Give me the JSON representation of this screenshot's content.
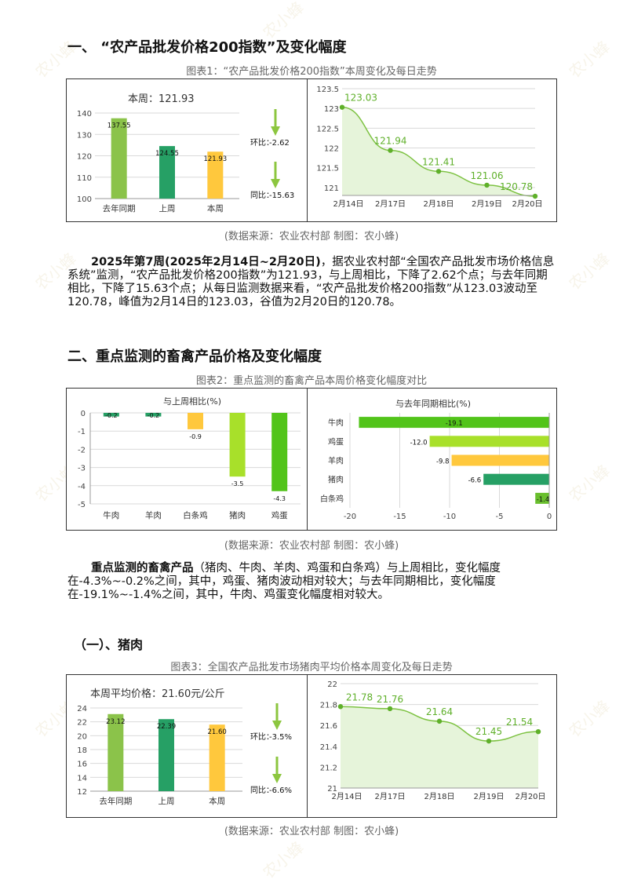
{
  "section1": {
    "heading": "一、 “农产品批发价格200指数”及变化幅度",
    "chart_caption": "图表1：“农产品批发价格200指数”本周变化及每日走势",
    "source": "(数据来源：农业农村部    制图：农小蜂)",
    "paragraph_bold": "2025年第7周(2025年2月14日~2月20日)",
    "paragraph_rest": "，据农业农村部“全国农产品批发市场价格信息系统”监测，“农产品批发价格200指数”为121.93，与上周相比，下降了2.62个点；与去年同期相比，下降了15.63个点；从每日监测数据来看，“农产品批发价格200指数”从123.03波动至120.78，峰值为2月14日的123.03，谷值为2月20日的120.78。"
  },
  "section2": {
    "heading": "二、重点监测的畜禽产品价格及变化幅度",
    "chart_caption": "图表2：重点监测的畜禽产品本周价格变化幅度对比",
    "source": "(数据来源：农业农村部    制图：农小蜂)",
    "paragraph_bold": "重点监测的畜禽产品",
    "paragraph_rest": "（猪肉、牛肉、羊肉、鸡蛋和白条鸡）与上周相比，变化幅度在-4.3%~-0.2%之间，其中，鸡蛋、猪肉波动相对较大；与去年同期相比，变化幅度在-19.1%~-1.4%之间，其中，牛肉、鸡蛋变化幅度相对较大。"
  },
  "section3": {
    "heading": "（一）、猪肉",
    "chart_caption": "图表3：全国农产品批发市场猪肉平均价格本周变化及每日走势",
    "source": "(数据来源：农业农村部    制图：农小蜂)"
  },
  "watermark": "农小蜂",
  "colors": {
    "olive_green": "#8bc34a",
    "dark_green": "#26a065",
    "yellow": "#ffc83d",
    "line_green": "#7dc242",
    "bright_green": "#52c41a",
    "lime": "#a8e02a",
    "arrow": "#8cc63f"
  },
  "chart_data": [
    {
      "type": "bar",
      "title": "本周：121.93",
      "categories": [
        "去年同期",
        "上周",
        "本周"
      ],
      "values": [
        137.55,
        124.55,
        121.93
      ],
      "value_labels": [
        "137.55",
        "124.55",
        "121.93"
      ],
      "y_ticks": [
        "100",
        "110",
        "120",
        "130",
        "140"
      ],
      "ylim": [
        100,
        140
      ],
      "annotations": [
        {
          "label": "环比：",
          "value": "-2.62"
        },
        {
          "label": "同比：",
          "value": "-15.63"
        }
      ]
    },
    {
      "type": "area",
      "categories": [
        "2月14日",
        "2月17日",
        "2月18日",
        "2月19日",
        "2月20日"
      ],
      "values": [
        123.03,
        121.94,
        121.41,
        121.06,
        120.78
      ],
      "value_labels": [
        "123.03",
        "121.94",
        "121.41",
        "121.06",
        "120.78"
      ],
      "y_ticks": [
        "121",
        "121.5",
        "122",
        "122.5",
        "123",
        "123.5"
      ],
      "ylim": [
        120.8,
        123.5
      ]
    },
    {
      "type": "bar",
      "title": "与上周相比(%)",
      "categories": [
        "牛肉",
        "羊肉",
        "白条鸡",
        "猪肉",
        "鸡蛋"
      ],
      "values": [
        -0.2,
        -0.2,
        -0.9,
        -3.5,
        -4.3
      ],
      "value_labels": [
        "-0.2",
        "-0.2",
        "-0.9",
        "-3.5",
        "-4.3"
      ],
      "y_ticks": [
        "0",
        "-1",
        "-2",
        "-3",
        "-4",
        "-5"
      ],
      "ylim": [
        -5,
        0
      ]
    },
    {
      "type": "bar",
      "orientation": "horizontal",
      "title": "与去年同期相比(%)",
      "categories": [
        "牛肉",
        "鸡蛋",
        "羊肉",
        "猪肉",
        "白条鸡"
      ],
      "values": [
        -19.1,
        -12.0,
        -9.8,
        -6.6,
        -1.4
      ],
      "value_labels": [
        "-19.1",
        "-12.0",
        "-9.8",
        "-6.6",
        "-1.4"
      ],
      "x_ticks": [
        "-20",
        "-15",
        "-10",
        "-5",
        "0"
      ],
      "xlim": [
        -20,
        0
      ]
    },
    {
      "type": "bar",
      "title": "本周平均价格：21.60元/公斤",
      "categories": [
        "去年同期",
        "上周",
        "本周"
      ],
      "values": [
        23.12,
        22.39,
        21.6
      ],
      "value_labels": [
        "23.12",
        "22.39",
        "21.60"
      ],
      "y_ticks": [
        "12",
        "14",
        "16",
        "18",
        "20",
        "22",
        "24"
      ],
      "ylim": [
        12,
        24
      ],
      "annotations": [
        {
          "label": "环比：",
          "value": "-3.5%"
        },
        {
          "label": "同比：",
          "value": "-6.6%"
        }
      ]
    },
    {
      "type": "area",
      "categories": [
        "2月14日",
        "2月17日",
        "2月18日",
        "2月19日",
        "2月20日"
      ],
      "values": [
        21.78,
        21.76,
        21.64,
        21.45,
        21.54
      ],
      "value_labels": [
        "21.78",
        "21.76",
        "21.64",
        "21.45",
        "21.54"
      ],
      "y_ticks": [
        "21",
        "21.2",
        "21.4",
        "21.6",
        "21.8",
        "22"
      ],
      "ylim": [
        21,
        22
      ]
    }
  ]
}
